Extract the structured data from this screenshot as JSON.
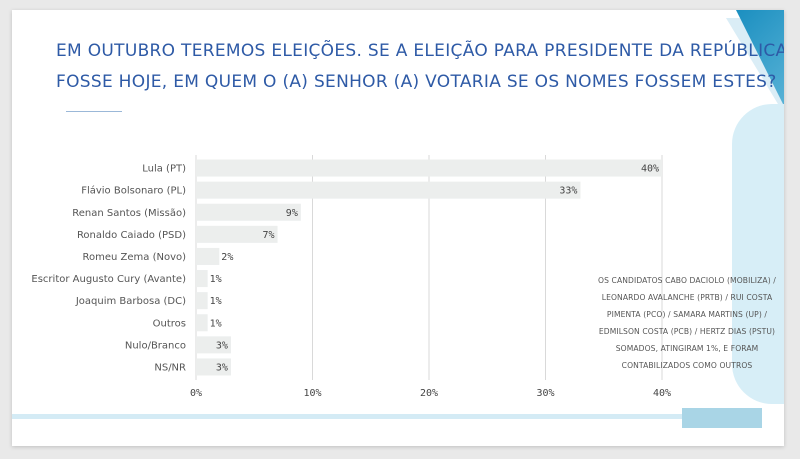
{
  "title_lines": [
    "EM OUTUBRO TEREMOS ELEIÇÕES. SE A ELEIÇÃO PARA PRESIDENTE DA REPÚBLICA",
    "FOSSE HOJE, EM QUEM O (A) SENHOR (A) VOTARIA SE OS NOMES FOSSEM ESTES?"
  ],
  "note_lines": [
    "OS CANDIDATOS CABO DACIOLO (MOBILIZA) /",
    "LEONARDO AVALANCHE (PRTB) / RUI COSTA",
    "PIMENTA (PCO) / SAMARA MARTINS (UP) /",
    "EDMILSON COSTA (PCB) / HERTZ DIAS (PSTU)",
    "SOMADOS, ATINGIRAM 1%, E FORAM",
    "CONTABILIZADOS COMO OUTROS"
  ],
  "colors": {
    "title": "#2e5aa6",
    "bar": "#eceeed",
    "grid": "#d9d9d9",
    "accent": "#1b8fc0"
  },
  "chart_data": {
    "type": "bar",
    "orientation": "horizontal",
    "categories": [
      "Lula (PT)",
      "Flávio Bolsonaro (PL)",
      "Renan Santos (Missão)",
      "Ronaldo Caiado (PSD)",
      "Romeu Zema (Novo)",
      "Escritor Augusto Cury (Avante)",
      "Joaquim Barbosa (DC)",
      "Outros",
      "Nulo/Branco",
      "NS/NR"
    ],
    "values": [
      40,
      33,
      9,
      7,
      2,
      1,
      1,
      1,
      3,
      3
    ],
    "value_labels": [
      "40%",
      "33%",
      "9%",
      "7%",
      "2%",
      "1%",
      "1%",
      "1%",
      "3%",
      "3%"
    ],
    "xlim": [
      0,
      40
    ],
    "xticks": [
      0,
      10,
      20,
      30,
      40
    ],
    "xtick_labels": [
      "0%",
      "10%",
      "20%",
      "30%",
      "40%"
    ],
    "grid": true
  }
}
